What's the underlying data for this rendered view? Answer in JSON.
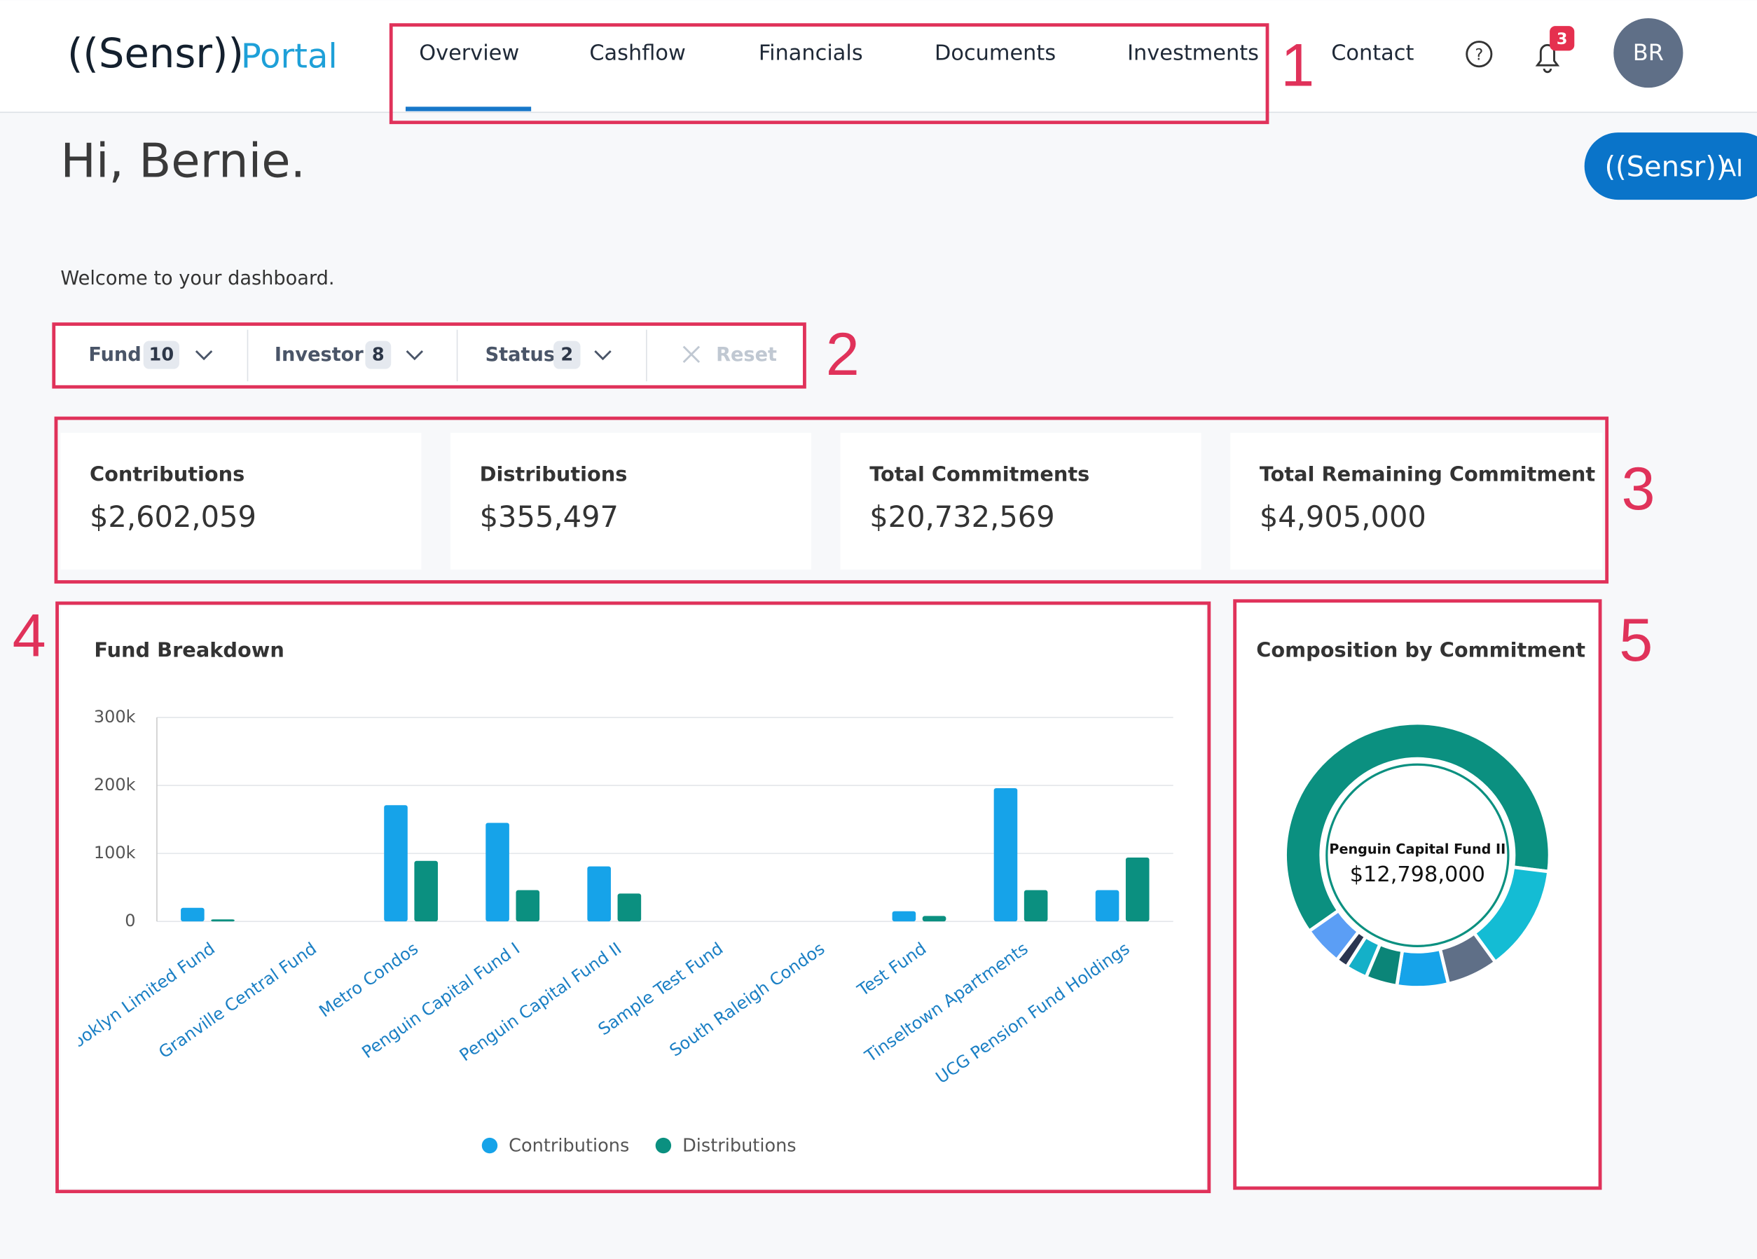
{
  "header": {
    "logo": "((Sensr))",
    "logo_suffix": "Portal",
    "nav": [
      "Overview",
      "Cashflow",
      "Financials",
      "Documents",
      "Investments"
    ],
    "contact": "Contact",
    "notifications": 3,
    "avatar": "BR",
    "ai_brand": "((Sensr))",
    "ai_suffix": "AI"
  },
  "greeting": "Hi, Bernie.",
  "welcome": "Welcome to your dashboard.",
  "filters": [
    {
      "label": "Fund",
      "count": 10
    },
    {
      "label": "Investor",
      "count": 8
    },
    {
      "label": "Status",
      "count": 2
    }
  ],
  "reset": "Reset",
  "cards": [
    {
      "label": "Contributions",
      "value": "$2,602,059"
    },
    {
      "label": "Distributions",
      "value": "$355,497"
    },
    {
      "label": "Total Commitments",
      "value": "$20,732,569"
    },
    {
      "label": "Total Remaining Commitment",
      "value": "$4,905,000"
    }
  ],
  "chart_data": [
    {
      "type": "bar",
      "title": "Fund Breakdown",
      "categories": [
        "Brooklyn Limited Fund",
        "Granville Central Fund",
        "Metro Condos",
        "Penguin Capital Fund I",
        "Penguin Capital Fund II",
        "Sample Test Fund",
        "South Raleigh Condos",
        "Test Fund",
        "Tinseltown Apartments",
        "UCG Pension Fund Holdings"
      ],
      "series": [
        {
          "name": "Contributions",
          "color": "#16a3e9",
          "values": [
            20000,
            0,
            171000,
            145000,
            81000,
            0,
            0,
            15000,
            196000,
            46000
          ]
        },
        {
          "name": "Distributions",
          "color": "#0b9080",
          "values": [
            3000,
            0,
            89000,
            46000,
            41000,
            0,
            0,
            8000,
            46000,
            94000
          ]
        }
      ],
      "ylim": [
        0,
        300000
      ],
      "yticks": [
        0,
        {
          "value": 100000,
          "label": "100k"
        },
        {
          "value": 200000,
          "label": "200k"
        },
        {
          "value": 300000,
          "label": "300k"
        }
      ],
      "grid": true,
      "legend": "bottom"
    },
    {
      "type": "donut",
      "title": "Composition by Commitment",
      "categories": [
        "Penguin Capital Fund II",
        null,
        null,
        null,
        null,
        null,
        null,
        null
      ],
      "values": [
        12798000,
        2700000,
        1300000,
        1300000,
        800000,
        550000,
        300000,
        1000000
      ],
      "value_labels": [
        "$12,798,000",
        null,
        null,
        null,
        null,
        null,
        null,
        null
      ],
      "colors": [
        "#0b9080",
        "#14bcd4",
        "#5f6f87",
        "#16a3e9",
        "#0b8578",
        "#14b0c8",
        "#2a3550",
        "#5b9ef5"
      ]
    }
  ],
  "annotations": [
    1,
    2,
    3,
    4,
    5
  ]
}
